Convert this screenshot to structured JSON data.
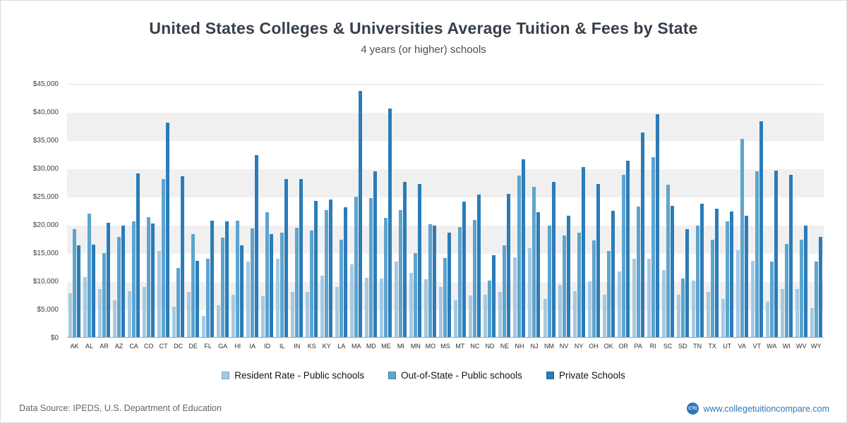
{
  "header": {
    "title": "United States Colleges & Universities Average Tuition & Fees by State",
    "subtitle": "4 years (or higher) schools"
  },
  "chart_data": {
    "type": "bar",
    "title": "United States Colleges & Universities Average Tuition & Fees by State",
    "subtitle": "4 years (or higher) schools",
    "categories": [
      "AK",
      "AL",
      "AR",
      "AZ",
      "CA",
      "CO",
      "CT",
      "DC",
      "DE",
      "FL",
      "GA",
      "HI",
      "IA",
      "ID",
      "IL",
      "IN",
      "KS",
      "KY",
      "LA",
      "MA",
      "MD",
      "ME",
      "MI",
      "MN",
      "MO",
      "MS",
      "MT",
      "NC",
      "ND",
      "NE",
      "NH",
      "NJ",
      "NM",
      "NV",
      "NY",
      "OH",
      "OK",
      "OR",
      "PA",
      "RI",
      "SC",
      "SD",
      "TN",
      "TX",
      "UT",
      "VA",
      "VT",
      "WA",
      "WI",
      "WV",
      "WY"
    ],
    "series": [
      {
        "name": "Resident Rate - Public schools",
        "color": "#a6c9e2",
        "values": [
          7800,
          10700,
          8500,
          6500,
          8200,
          8900,
          15400,
          5400,
          8100,
          3800,
          5700,
          7500,
          13400,
          7300,
          13900,
          8100,
          8000,
          10900,
          8900,
          13000,
          10600,
          10400,
          13400,
          11400,
          10300,
          8900,
          6600,
          7400,
          7600,
          8000,
          14200,
          15900,
          6800,
          9300,
          8200,
          9900,
          7500,
          11700,
          13900,
          13900,
          11900,
          7500,
          10000,
          8000,
          6800,
          15500,
          13600,
          6300,
          8600,
          8500,
          5100
        ]
      },
      {
        "name": "Out-of-State - Public schools",
        "color": "#5da4cf",
        "values": [
          19200,
          22000,
          15000,
          17800,
          20600,
          21400,
          28200,
          12300,
          18300,
          13900,
          17700,
          20800,
          19400,
          22300,
          18600,
          19500,
          19000,
          22600,
          17300,
          25000,
          24800,
          21300,
          22600,
          14900,
          20100,
          14100,
          19600,
          20900,
          10100,
          16400,
          28800,
          26800,
          19900,
          18100,
          18600,
          17200,
          15400,
          28900,
          23300,
          32000,
          27100,
          10400,
          19900,
          17400,
          20600,
          35300,
          29500,
          13400,
          16600,
          17400,
          13400
        ]
      },
      {
        "name": "Private Schools",
        "color": "#2b7cb9",
        "values": [
          16300,
          16500,
          20400,
          19800,
          29200,
          20200,
          38200,
          28700,
          13600,
          20700,
          20600,
          16400,
          32400,
          18400,
          28200,
          28200,
          24200,
          24500,
          23100,
          43900,
          29600,
          40700,
          27700,
          27300,
          19900,
          18600,
          24100,
          25400,
          14600,
          25500,
          31700,
          22300,
          27600,
          21600,
          30300,
          27300,
          22500,
          31400,
          36400,
          39700,
          23400,
          19200,
          23700,
          22900,
          22400,
          21600,
          38500,
          29700,
          28900,
          19900,
          17800
        ]
      }
    ],
    "ylim": [
      0,
      45000
    ],
    "ytick_step": 5000,
    "ytick_labels": [
      "$0",
      "$5,000",
      "$10,000",
      "$15,000",
      "$20,000",
      "$25,000",
      "$30,000",
      "$35,000",
      "$40,000",
      "$45,000"
    ],
    "grid": "horizontal-bands",
    "legend_position": "bottom"
  },
  "footer": {
    "source": "Data Source: IPEDS, U.S. Department of Education",
    "site": "www.collegetuitioncompare.com",
    "logo_text": "CTC"
  }
}
